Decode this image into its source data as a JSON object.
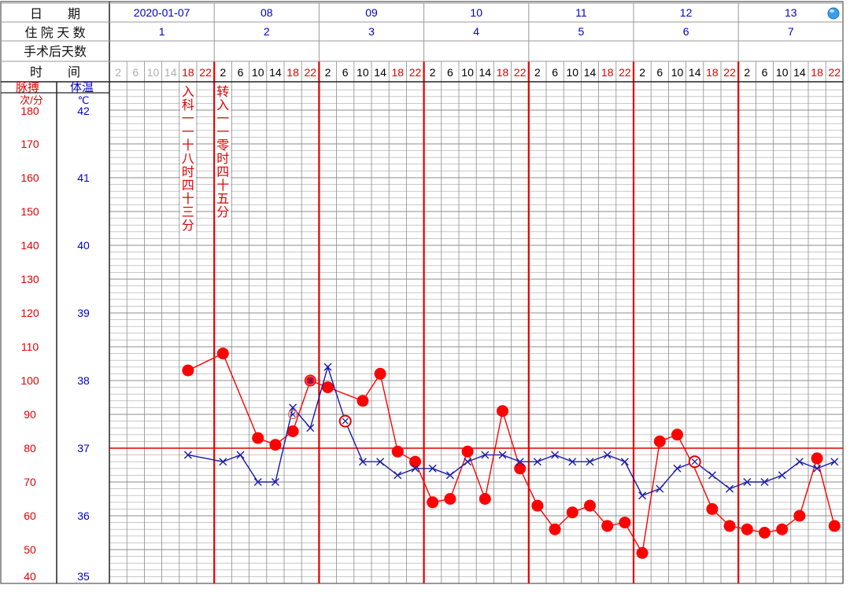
{
  "header": {
    "date_label": "日　　期",
    "days_label": "住 院 天 数",
    "postop_label": "手术后天数",
    "time_label": "时　　间",
    "dates": [
      "2020-01-07",
      "08",
      "09",
      "10",
      "11",
      "12",
      "13"
    ],
    "hospital_days": [
      "1",
      "2",
      "3",
      "4",
      "5",
      "6",
      "7"
    ],
    "hours": [
      "2",
      "6",
      "10",
      "14",
      "18",
      "22"
    ]
  },
  "axes": {
    "pulse_title": "脉搏",
    "pulse_unit": "次/分",
    "temp_title": "体温",
    "temp_unit": "℃",
    "pulse_ticks": [
      "180",
      "170",
      "160",
      "150",
      "140",
      "130",
      "120",
      "110",
      "100",
      "90",
      "80",
      "70",
      "60",
      "50",
      "40"
    ],
    "temp_ticks": [
      "42",
      "41",
      "40",
      "39",
      "38",
      "37",
      "36",
      "35"
    ]
  },
  "annotations": [
    {
      "text": "入科一一十八时四十三分",
      "day": 0,
      "slot": 4
    },
    {
      "text": "转入一一零时四十五分",
      "day": 1,
      "slot": 0
    }
  ],
  "colors": {
    "pulse": "#ff0000",
    "temp": "#1a1aaa",
    "grid": "#a8a8a8",
    "day_divider": "#e00000",
    "reference": "#e00000",
    "header_blue": "#0000cc",
    "grey_hour": "#b0b0b0"
  },
  "status_icon": "globe-icon",
  "chart_data": {
    "type": "line",
    "title": "",
    "x": [
      "01-07 02",
      "01-07 06",
      "01-07 10",
      "01-07 14",
      "01-07 18",
      "01-07 22",
      "01-08 02",
      "01-08 06",
      "01-08 10",
      "01-08 14",
      "01-08 18",
      "01-08 22",
      "01-09 02",
      "01-09 06",
      "01-09 10",
      "01-09 14",
      "01-09 18",
      "01-09 22",
      "01-10 02",
      "01-10 06",
      "01-10 10",
      "01-10 14",
      "01-10 18",
      "01-10 22",
      "01-11 02",
      "01-11 06",
      "01-11 10",
      "01-11 14",
      "01-11 18",
      "01-11 22",
      "01-12 02",
      "01-12 06",
      "01-12 10",
      "01-12 14",
      "01-12 18",
      "01-12 22",
      "01-13 02",
      "01-13 06",
      "01-13 10",
      "01-13 14",
      "01-13 18",
      "01-13 22"
    ],
    "series": [
      {
        "name": "脉搏",
        "unit": "次/分",
        "axis": "pulse",
        "values": [
          null,
          null,
          null,
          null,
          103,
          null,
          108,
          null,
          83,
          81,
          85,
          100,
          98,
          null,
          94,
          102,
          79,
          76,
          64,
          65,
          79,
          65,
          91,
          74,
          63,
          56,
          61,
          63,
          57,
          58,
          49,
          82,
          84,
          74,
          62,
          57,
          56,
          55,
          56,
          60,
          77,
          57
        ],
        "markers": [
          "",
          "",
          "",
          "",
          "dot",
          "",
          "dot",
          "",
          "dot",
          "dot",
          "dot",
          "dot",
          "dot",
          "",
          "dot",
          "dot",
          "dot",
          "dot",
          "dot",
          "dot",
          "dot",
          "dot",
          "dot",
          "dot",
          "dot",
          "dot",
          "dot",
          "dot",
          "dot",
          "dot",
          "dot",
          "dot",
          "dot",
          "",
          "dot",
          "dot",
          "dot",
          "dot",
          "dot",
          "dot",
          "dot",
          "dot"
        ]
      },
      {
        "name": "体温",
        "unit": "℃",
        "axis": "temp",
        "values": [
          null,
          null,
          null,
          null,
          36.9,
          null,
          36.8,
          36.9,
          36.5,
          36.5,
          37.6,
          37.3,
          38.2,
          37.4,
          36.8,
          36.8,
          36.6,
          36.7,
          36.7,
          36.6,
          36.8,
          36.9,
          36.9,
          36.8,
          36.8,
          36.9,
          36.8,
          36.8,
          36.9,
          36.8,
          36.3,
          36.4,
          36.7,
          36.8,
          36.6,
          36.4,
          36.5,
          36.5,
          36.6,
          36.8,
          36.7,
          36.8
        ],
        "markers": [
          "",
          "",
          "",
          "",
          "x",
          "",
          "x",
          "x",
          "x",
          "x",
          "x",
          "x",
          "x",
          "circle-x",
          "x",
          "x",
          "x",
          "x",
          "x",
          "x",
          "x",
          "x",
          "x",
          "x",
          "x",
          "x",
          "x",
          "x",
          "x",
          "x",
          "x",
          "x",
          "x",
          "circle-x",
          "x",
          "x",
          "x",
          "x",
          "x",
          "x",
          "x",
          "x"
        ]
      }
    ],
    "axes": {
      "pulse": {
        "title": "脉搏",
        "unit": "次/分",
        "range": [
          40,
          180
        ],
        "ticks": [
          180,
          170,
          160,
          150,
          140,
          130,
          120,
          110,
          100,
          90,
          80,
          70,
          60,
          50,
          40
        ]
      },
      "temp": {
        "title": "体温",
        "unit": "℃",
        "range": [
          35,
          42
        ],
        "ticks": [
          42,
          41,
          40,
          39,
          38,
          37,
          36,
          35
        ]
      }
    },
    "reference_line": {
      "axis": "temp",
      "value": 37
    },
    "extra_points": [
      {
        "axis": "temp",
        "x": "01-08 18",
        "value": 37.5,
        "marker": "circle-x"
      },
      {
        "axis": "temp",
        "x": "01-08 22",
        "value": 38.0,
        "marker": "circle-x"
      }
    ],
    "grid": true,
    "legend": "none"
  }
}
